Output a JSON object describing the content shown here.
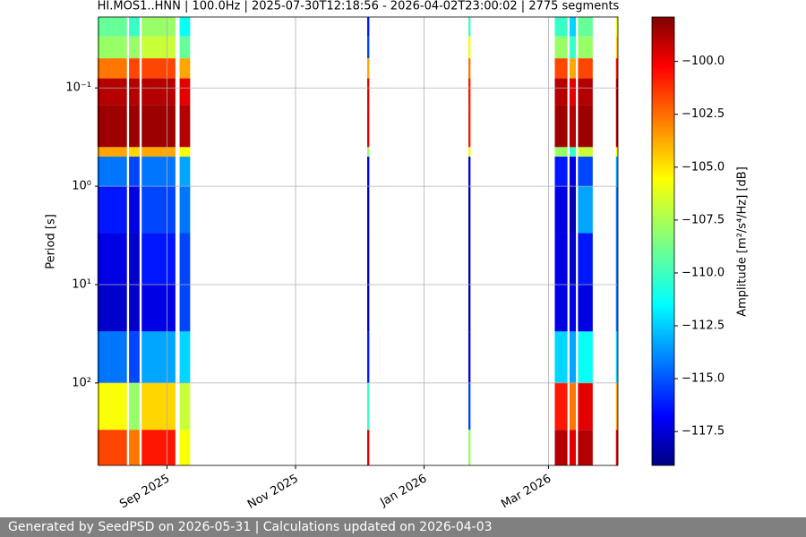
{
  "chart_data": {
    "type": "spectrogram",
    "title": "HI.MOS1..HNN | 100.0Hz | 2025-07-30T12:18:56 - 2026-04-02T23:00:02 | 2775 segments",
    "ylabel": "Period [s]",
    "colorbar_label": "Amplitude [m²/s⁴/Hz] [dB]",
    "colormap": "jet",
    "grid": true,
    "xlim": [
      "2025-07-30T12:18:56",
      "2026-04-02T23:00:02"
    ],
    "xticks": [
      {
        "value": "2025-09-01",
        "label": "Sep 2025"
      },
      {
        "value": "2025-11-01",
        "label": "Nov 2025"
      },
      {
        "value": "2026-01-01",
        "label": "Jan 2026"
      },
      {
        "value": "2026-03-01",
        "label": "Mar 2026"
      }
    ],
    "ylim": [
      0.019,
      690
    ],
    "ylog": true,
    "yinverted": true,
    "yticks": [
      {
        "value": 0.1,
        "label": "10⁻¹"
      },
      {
        "value": 1,
        "label": "10⁰"
      },
      {
        "value": 10,
        "label": "10¹"
      },
      {
        "value": 100,
        "label": "10²"
      }
    ],
    "clim": [
      -119.1,
      -97.9
    ],
    "cticks": [
      {
        "value": -100,
        "label": "−100.0"
      },
      {
        "value": -102.5,
        "label": "−102.5"
      },
      {
        "value": -105,
        "label": "−105.0"
      },
      {
        "value": -107.5,
        "label": "−107.5"
      },
      {
        "value": -110,
        "label": "−110.0"
      },
      {
        "value": -112.5,
        "label": "−112.5"
      },
      {
        "value": -115,
        "label": "−115.0"
      },
      {
        "value": -117.5,
        "label": "−117.5"
      }
    ],
    "period_bins": [
      0.019,
      0.03,
      0.05,
      0.08,
      0.15,
      0.4,
      0.5,
      1,
      3,
      10,
      30,
      100,
      300,
      690
    ],
    "segments": [
      {
        "start": "2025-07-30",
        "end": "2025-08-13",
        "values": [
          -109,
          -108,
          -103,
          -99,
          -98.5,
          -104,
          -114,
          -116,
          -117,
          -117.5,
          -114,
          -106,
          -102
        ]
      },
      {
        "start": "2025-08-14",
        "end": "2025-08-19",
        "values": [
          -110,
          -108,
          -102,
          -99,
          -98.5,
          -105,
          -115,
          -117,
          -117.5,
          -117.5,
          -115,
          -108,
          -103
        ]
      },
      {
        "start": "2025-08-20",
        "end": "2025-09-05",
        "values": [
          -108,
          -107,
          -102,
          -99,
          -98.5,
          -104,
          -114,
          -115,
          -116,
          -117,
          -113,
          -105,
          -101
        ]
      },
      {
        "start": "2025-09-07",
        "end": "2025-09-12",
        "values": [
          -111,
          -109,
          -104,
          -100,
          -99,
          -106,
          -113,
          -114,
          -115,
          -115,
          -112,
          -107,
          -106
        ]
      },
      {
        "start": "2025-12-05",
        "end": "2025-12-06",
        "values": [
          -116,
          -115,
          -104,
          -100,
          -100,
          -108,
          -117,
          -118,
          -118,
          -118,
          -116,
          -110,
          -100
        ]
      },
      {
        "start": "2026-01-22",
        "end": "2026-01-23",
        "values": [
          -110,
          -106,
          -103,
          -101,
          -101,
          -106,
          -117,
          -118,
          -118,
          -118,
          -117,
          -115,
          -108
        ]
      },
      {
        "start": "2026-03-04",
        "end": "2026-03-10",
        "values": [
          -110,
          -108,
          -102,
          -99,
          -98.5,
          -108,
          -116,
          -117,
          -117,
          -117,
          -112,
          -101,
          -99
        ]
      },
      {
        "start": "2026-03-11",
        "end": "2026-03-14",
        "values": [
          -112,
          -110,
          -104,
          -100,
          -99,
          -110,
          -117,
          -118,
          -117.5,
          -117,
          -113,
          -103,
          -100
        ]
      },
      {
        "start": "2026-03-15",
        "end": "2026-03-22",
        "values": [
          -109,
          -108,
          -102,
          -99,
          -98.5,
          -107,
          -115,
          -113,
          -116,
          -117,
          -111,
          -100,
          -99
        ]
      },
      {
        "start": "2026-04-02",
        "end": "2026-04-02T23:00:02",
        "values": [
          -106,
          -105,
          -101,
          -99,
          -99,
          -106,
          -113,
          -114,
          -114,
          -114,
          -112,
          -104,
          -100
        ]
      }
    ]
  },
  "footer": "Generated by SeedPSD on 2026-05-31 | Calculations updated on 2026-04-03"
}
